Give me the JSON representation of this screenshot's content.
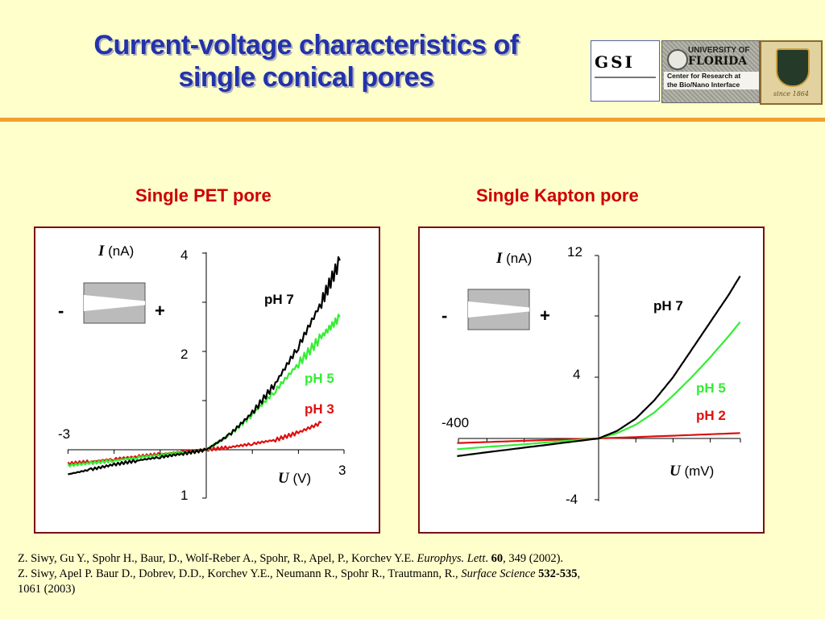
{
  "title": {
    "line1": "Current-voltage characteristics of",
    "line2": "single conical pores"
  },
  "logos": {
    "gsi": "GSI",
    "uf_university": "UNIVERSITY OF",
    "uf_florida": "FLORIDA",
    "uf_center_line1": "Center for Research at",
    "uf_center_line2": "the Bio/Nano Interface",
    "jena_since": "since 1864"
  },
  "colors": {
    "title": "#2233AA",
    "panel_title": "#CC0000",
    "frame": "#7A1010",
    "ph7": "#000000",
    "ph5": "#33EE33",
    "ph_low": "#DD1111",
    "accent_rule": "#F0A030"
  },
  "chart_data": [
    {
      "type": "line",
      "title": "Single PET pore",
      "ylabel_symbol": "I",
      "ylabel_unit": "(nA)",
      "xlabel_symbol": "U",
      "xlabel_unit": "(V)",
      "tick_labels": {
        "x_left": "-3",
        "x_right": "3",
        "y_top": "4",
        "y_mid": "2",
        "y_bottom": "1"
      },
      "xlim": [
        -3,
        3
      ],
      "ylim": [
        -1,
        4
      ],
      "pore_icon": {
        "minus": "-",
        "plus": "+"
      },
      "series": [
        {
          "name": "pH 7",
          "color": "#000000",
          "x": [
            -3.0,
            -2.5,
            -2.0,
            -1.5,
            -1.0,
            -0.5,
            0.0,
            0.5,
            1.0,
            1.5,
            2.0,
            2.5,
            2.9
          ],
          "y": [
            -0.5,
            -0.4,
            -0.3,
            -0.22,
            -0.15,
            -0.08,
            0.0,
            0.3,
            0.75,
            1.35,
            2.1,
            3.0,
            3.85
          ]
        },
        {
          "name": "pH 5",
          "color": "#33EE33",
          "x": [
            -3.0,
            -2.5,
            -2.0,
            -1.5,
            -1.0,
            -0.5,
            0.0,
            0.5,
            1.0,
            1.5,
            2.0,
            2.5,
            2.9
          ],
          "y": [
            -0.32,
            -0.27,
            -0.22,
            -0.16,
            -0.11,
            -0.06,
            0.0,
            0.3,
            0.72,
            1.2,
            1.75,
            2.3,
            2.7
          ]
        },
        {
          "name": "pH 3",
          "color": "#DD1111",
          "x": [
            -3.0,
            -2.5,
            -2.0,
            -1.5,
            -1.0,
            -0.5,
            0.0,
            0.5,
            1.0,
            1.5,
            2.0,
            2.5
          ],
          "y": [
            -0.28,
            -0.24,
            -0.19,
            -0.14,
            -0.09,
            -0.04,
            0.0,
            0.05,
            0.12,
            0.2,
            0.35,
            0.55
          ]
        }
      ]
    },
    {
      "type": "line",
      "title": "Single Kapton pore",
      "ylabel_symbol": "I",
      "ylabel_unit": "(nA)",
      "xlabel_symbol": "U",
      "xlabel_unit": "(mV)",
      "tick_labels": {
        "x_left": "-400",
        "y_top": "12",
        "y_mid": "4",
        "y_bottom": "-4"
      },
      "xlim": [
        -400,
        400
      ],
      "ylim": [
        -4,
        12
      ],
      "pore_icon": {
        "minus": "-",
        "plus": "+"
      },
      "series": [
        {
          "name": "pH 7",
          "color": "#000000",
          "x": [
            -380,
            -300,
            -200,
            -100,
            0,
            50,
            100,
            150,
            200,
            250,
            300,
            350,
            380
          ],
          "y": [
            -1.15,
            -0.9,
            -0.6,
            -0.3,
            0.0,
            0.5,
            1.3,
            2.5,
            4.0,
            5.8,
            7.6,
            9.4,
            10.6
          ]
        },
        {
          "name": "pH 5",
          "color": "#33EE33",
          "x": [
            -380,
            -300,
            -200,
            -100,
            0,
            50,
            100,
            150,
            200,
            250,
            300,
            350,
            380
          ],
          "y": [
            -0.7,
            -0.55,
            -0.38,
            -0.18,
            0.0,
            0.35,
            0.9,
            1.7,
            2.8,
            4.0,
            5.3,
            6.7,
            7.6
          ]
        },
        {
          "name": "pH 2",
          "color": "#DD1111",
          "x": [
            -380,
            -200,
            0,
            200,
            380
          ],
          "y": [
            -0.3,
            -0.15,
            0.0,
            0.18,
            0.35
          ]
        }
      ]
    }
  ],
  "references": {
    "ref1_authors": "Z. Siwy, Gu Y., Spohr H., Baur, D., Wolf-Reber A., Spohr, R., Apel, P., Korchev Y.E.",
    "ref1_journal": "Europhys. Lett",
    "ref1_volume": "60",
    "ref1_rest": ", 349 (2002).",
    "ref2_authors": "Z. Siwy, Apel P. Baur D., Dobrev, D.D., Korchev Y.E., Neumann R., Spohr R., Trautmann, R.,",
    "ref2_journal": "Surface Science",
    "ref2_volume": "532-535",
    "ref2_rest": "1061 (2003)"
  }
}
